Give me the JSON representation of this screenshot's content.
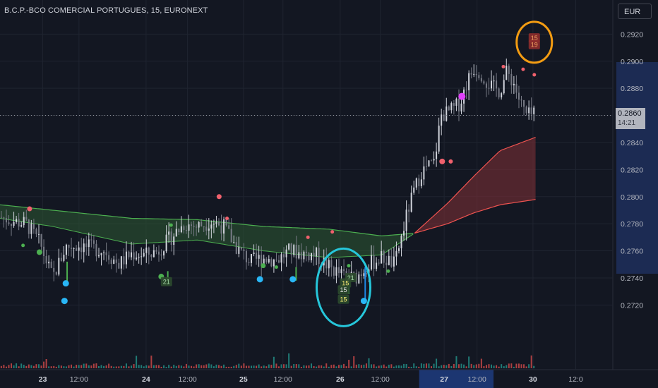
{
  "header": {
    "title": "B.C.P.-BCO COMERCIAL PORTUGUES, 15, EURONEXT",
    "currency": "EUR"
  },
  "price_axis": {
    "ticks": [
      "0.2920",
      "0.2900",
      "0.2880",
      "0.2860",
      "0.2840",
      "0.2820",
      "0.2800",
      "0.2780",
      "0.2760",
      "0.2740",
      "0.2720"
    ],
    "current_price": "0.2860",
    "countdown": "14:21"
  },
  "time_axis": {
    "ticks": [
      {
        "label": "23",
        "bold": true,
        "t": 0.065
      },
      {
        "label": "12:00",
        "bold": false,
        "t": 0.12
      },
      {
        "label": "24",
        "bold": true,
        "t": 0.222
      },
      {
        "label": "12:00",
        "bold": false,
        "t": 0.285
      },
      {
        "label": "25",
        "bold": true,
        "t": 0.37
      },
      {
        "label": "12:00",
        "bold": false,
        "t": 0.43
      },
      {
        "label": "26",
        "bold": true,
        "t": 0.517
      },
      {
        "label": "12:00",
        "bold": false,
        "t": 0.578
      },
      {
        "label": "27",
        "bold": true,
        "t": 0.675
      },
      {
        "label": "12:00",
        "bold": false,
        "t": 0.725
      },
      {
        "label": "30",
        "bold": true,
        "t": 0.81
      },
      {
        "label": "12:0",
        "bold": false,
        "t": 0.875
      }
    ]
  },
  "chart_data": {
    "type": "candlestick",
    "symbol": "B.C.P.-BCO COMERCIAL PORTUGUES",
    "interval": "15",
    "exchange": "EURONEXT",
    "ylim": [
      0.2703,
      0.2928
    ],
    "last_price": 0.286,
    "close_path": [
      [
        0.0,
        0.2785
      ],
      [
        0.02,
        0.2782
      ],
      [
        0.04,
        0.278
      ],
      [
        0.06,
        0.2766
      ],
      [
        0.08,
        0.274
      ],
      [
        0.1,
        0.2763
      ],
      [
        0.12,
        0.2764
      ],
      [
        0.14,
        0.2762
      ],
      [
        0.16,
        0.276
      ],
      [
        0.18,
        0.275
      ],
      [
        0.2,
        0.2758
      ],
      [
        0.22,
        0.2757
      ],
      [
        0.24,
        0.276
      ],
      [
        0.26,
        0.277
      ],
      [
        0.28,
        0.278
      ],
      [
        0.3,
        0.2778
      ],
      [
        0.32,
        0.2782
      ],
      [
        0.34,
        0.2778
      ],
      [
        0.36,
        0.2762
      ],
      [
        0.38,
        0.2752
      ],
      [
        0.4,
        0.2755
      ],
      [
        0.42,
        0.2753
      ],
      [
        0.44,
        0.276
      ],
      [
        0.46,
        0.2758
      ],
      [
        0.48,
        0.2757
      ],
      [
        0.5,
        0.2748
      ],
      [
        0.52,
        0.2742
      ],
      [
        0.54,
        0.274
      ],
      [
        0.56,
        0.275
      ],
      [
        0.58,
        0.2755
      ],
      [
        0.6,
        0.275
      ],
      [
        0.61,
        0.277
      ],
      [
        0.62,
        0.279
      ],
      [
        0.63,
        0.2805
      ],
      [
        0.64,
        0.2818
      ],
      [
        0.65,
        0.2822
      ],
      [
        0.66,
        0.2825
      ],
      [
        0.67,
        0.286
      ],
      [
        0.68,
        0.2862
      ],
      [
        0.69,
        0.2865
      ],
      [
        0.7,
        0.287
      ],
      [
        0.71,
        0.2885
      ],
      [
        0.72,
        0.2895
      ],
      [
        0.73,
        0.2892
      ],
      [
        0.74,
        0.2885
      ],
      [
        0.75,
        0.288
      ],
      [
        0.76,
        0.2878
      ],
      [
        0.77,
        0.2892
      ],
      [
        0.78,
        0.2885
      ],
      [
        0.79,
        0.287
      ],
      [
        0.8,
        0.286
      ],
      [
        0.815,
        0.286
      ]
    ],
    "band_upper": [
      [
        0.0,
        0.2794
      ],
      [
        0.08,
        0.279
      ],
      [
        0.2,
        0.2784
      ],
      [
        0.3,
        0.2783
      ],
      [
        0.4,
        0.2778
      ],
      [
        0.5,
        0.2776
      ],
      [
        0.58,
        0.2771
      ],
      [
        0.63,
        0.2773
      ],
      [
        0.68,
        0.2795
      ],
      [
        0.72,
        0.2815
      ],
      [
        0.76,
        0.2834
      ],
      [
        0.815,
        0.2844
      ]
    ],
    "band_lower": [
      [
        0.0,
        0.2784
      ],
      [
        0.08,
        0.2778
      ],
      [
        0.2,
        0.2765
      ],
      [
        0.3,
        0.2768
      ],
      [
        0.4,
        0.276
      ],
      [
        0.5,
        0.2755
      ],
      [
        0.58,
        0.2757
      ],
      [
        0.63,
        0.2773
      ],
      [
        0.68,
        0.278
      ],
      [
        0.72,
        0.2788
      ],
      [
        0.76,
        0.2794
      ],
      [
        0.815,
        0.2798
      ]
    ],
    "signals": [
      {
        "t": 0.045,
        "y": 0.2791,
        "c": "#f0616d",
        "r": 3.5
      },
      {
        "t": 0.06,
        "y": 0.2759,
        "c": "#4caf50",
        "r": 4
      },
      {
        "t": 0.035,
        "y": 0.2764,
        "c": "#4caf50",
        "r": 2.5
      },
      {
        "t": 0.1,
        "y": 0.2736,
        "c": "#29b6f6",
        "r": 4.5
      },
      {
        "t": 0.098,
        "y": 0.2723,
        "c": "#29b6f6",
        "r": 4.5
      },
      {
        "t": 0.245,
        "y": 0.2741,
        "c": "#4caf50",
        "r": 4
      },
      {
        "t": 0.26,
        "y": 0.2779,
        "c": "#4caf50",
        "r": 2.5
      },
      {
        "t": 0.333,
        "y": 0.28,
        "c": "#f0616d",
        "r": 3.5
      },
      {
        "t": 0.345,
        "y": 0.2784,
        "c": "#f0616d",
        "r": 2.5
      },
      {
        "t": 0.395,
        "y": 0.2739,
        "c": "#29b6f6",
        "r": 4.5
      },
      {
        "t": 0.4,
        "y": 0.2749,
        "c": "#4caf50",
        "r": 3.5
      },
      {
        "t": 0.42,
        "y": 0.2748,
        "c": "#4caf50",
        "r": 2.5
      },
      {
        "t": 0.445,
        "y": 0.2739,
        "c": "#29b6f6",
        "r": 4.5
      },
      {
        "t": 0.468,
        "y": 0.277,
        "c": "#f0616d",
        "r": 2.5
      },
      {
        "t": 0.505,
        "y": 0.2774,
        "c": "#f0616d",
        "r": 2.5
      },
      {
        "t": 0.53,
        "y": 0.2749,
        "c": "#4caf50",
        "r": 2.5
      },
      {
        "t": 0.553,
        "y": 0.2723,
        "c": "#29b6f6",
        "r": 4.5
      },
      {
        "t": 0.59,
        "y": 0.2745,
        "c": "#4caf50",
        "r": 2.5
      },
      {
        "t": 0.702,
        "y": 0.2874,
        "c": "#e040fb",
        "r": 5
      },
      {
        "t": 0.672,
        "y": 0.2826,
        "c": "#f0616d",
        "r": 4
      },
      {
        "t": 0.685,
        "y": 0.2826,
        "c": "#f0616d",
        "r": 3
      },
      {
        "t": 0.765,
        "y": 0.2896,
        "c": "#f0616d",
        "r": 2.5
      },
      {
        "t": 0.795,
        "y": 0.2894,
        "c": "#f0616d",
        "r": 2.5
      },
      {
        "t": 0.812,
        "y": 0.289,
        "c": "#f0616d",
        "r": 2.5
      }
    ],
    "labels": [
      {
        "text": "21",
        "t": 0.253,
        "y": 0.2737,
        "c": "#a5d6a7"
      },
      {
        "text": "21",
        "t": 0.533,
        "y": 0.274,
        "c": "#a5d6a7"
      },
      {
        "text": "15",
        "t": 0.525,
        "y": 0.2736,
        "c": "#fff176"
      },
      {
        "text": "15",
        "t": 0.522,
        "y": 0.2731,
        "c": "#e0e0e0"
      },
      {
        "text": "15",
        "t": 0.522,
        "y": 0.2724,
        "c": "#fff176"
      },
      {
        "text": "15",
        "t": 0.812,
        "y": 0.2917,
        "c": "#f0a060"
      },
      {
        "text": "19",
        "t": 0.812,
        "y": 0.2912,
        "c": "#f0a060"
      }
    ],
    "annotations": [
      {
        "shape": "ellipse",
        "t": 0.522,
        "y": 0.2733,
        "c": "#26c6da"
      },
      {
        "shape": "ellipse",
        "t": 0.812,
        "y": 0.2914,
        "c": "#f39c12"
      }
    ]
  }
}
